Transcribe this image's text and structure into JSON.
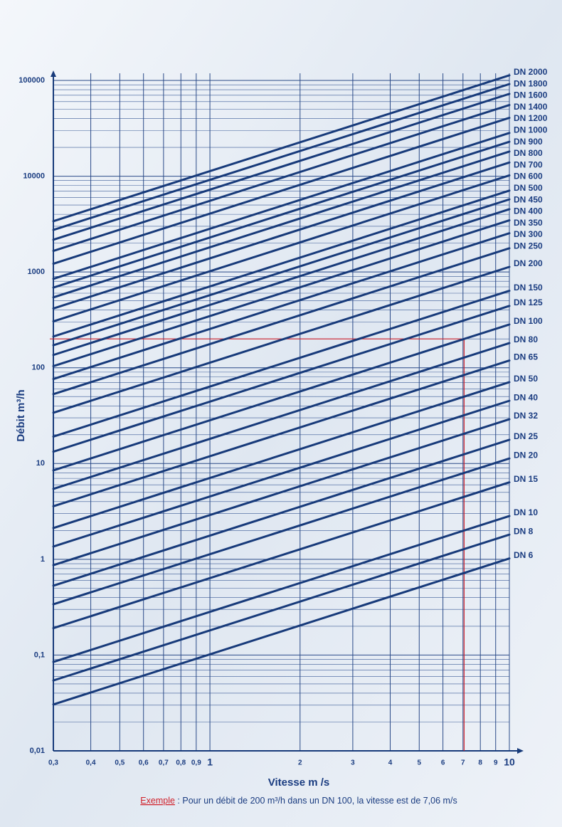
{
  "chart_data": {
    "type": "line",
    "xlabel": "Vitesse m /s",
    "ylabel": "Débit m³/h",
    "x": [
      0.3,
      10
    ],
    "series": [
      {
        "name": "DN 2000",
        "values": [
          3390,
          113000
        ]
      },
      {
        "name": "DN 1800",
        "values": [
          2750,
          91600
        ]
      },
      {
        "name": "DN 1600",
        "values": [
          2170,
          72400
        ]
      },
      {
        "name": "DN 1400",
        "values": [
          1660,
          55400
        ]
      },
      {
        "name": "DN 1200",
        "values": [
          1220,
          40700
        ]
      },
      {
        "name": "DN 1000",
        "values": [
          848,
          28300
        ]
      },
      {
        "name": "DN 900",
        "values": [
          687,
          22900
        ]
      },
      {
        "name": "DN 800",
        "values": [
          543,
          18100
        ]
      },
      {
        "name": "DN 700",
        "values": [
          416,
          13900
        ]
      },
      {
        "name": "DN 600",
        "values": [
          305,
          10200
        ]
      },
      {
        "name": "DN 500",
        "values": [
          212,
          7070
        ]
      },
      {
        "name": "DN 450",
        "values": [
          172,
          5730
        ]
      },
      {
        "name": "DN 400",
        "values": [
          136,
          4520
        ]
      },
      {
        "name": "DN 350",
        "values": [
          104,
          3460
        ]
      },
      {
        "name": "DN 300",
        "values": [
          76.3,
          2540
        ]
      },
      {
        "name": "DN 250",
        "values": [
          53,
          1770
        ]
      },
      {
        "name": "DN 200",
        "values": [
          33.9,
          1130
        ]
      },
      {
        "name": "DN 150",
        "values": [
          19.1,
          636
        ]
      },
      {
        "name": "DN 125",
        "values": [
          13.3,
          442
        ]
      },
      {
        "name": "DN 100",
        "values": [
          8.48,
          283
        ]
      },
      {
        "name": "DN 80",
        "values": [
          5.43,
          181
        ]
      },
      {
        "name": "DN 65",
        "values": [
          3.58,
          119
        ]
      },
      {
        "name": "DN 50",
        "values": [
          2.12,
          70.7
        ]
      },
      {
        "name": "DN 40",
        "values": [
          1.36,
          45.2
        ]
      },
      {
        "name": "DN 32",
        "values": [
          0.869,
          29
        ]
      },
      {
        "name": "DN 25",
        "values": [
          0.53,
          17.7
        ]
      },
      {
        "name": "DN 20",
        "values": [
          0.339,
          11.3
        ]
      },
      {
        "name": "DN 15",
        "values": [
          0.191,
          6.36
        ]
      },
      {
        "name": "DN 10",
        "values": [
          0.0848,
          2.83
        ]
      },
      {
        "name": "DN 8",
        "values": [
          0.0543,
          1.81
        ]
      },
      {
        "name": "DN 6",
        "values": [
          0.0305,
          1.02
        ]
      }
    ],
    "line_color": "#173a7a",
    "xlim": [
      0.3,
      10
    ],
    "ylim": [
      0.01,
      100000
    ],
    "xlog": true,
    "ylog": true,
    "grid": true,
    "minor_grid": true,
    "xticks": [
      {
        "value": 0.3,
        "label": "0,3"
      },
      {
        "value": 0.4,
        "label": "0,4"
      },
      {
        "value": 0.5,
        "label": "0,5"
      },
      {
        "value": 0.6,
        "label": "0,6"
      },
      {
        "value": 0.7,
        "label": "0,7"
      },
      {
        "value": 0.8,
        "label": "0,8"
      },
      {
        "value": 0.9,
        "label": "0,9"
      },
      1,
      2,
      3,
      4,
      5,
      6,
      7,
      8,
      9,
      10
    ],
    "yticks": [
      {
        "value": 0.01,
        "label": "0,01"
      },
      {
        "value": 0.1,
        "label": "0,1"
      },
      1,
      10,
      100,
      1000,
      10000,
      100000
    ],
    "example": {
      "x": 7.06,
      "y": 200,
      "color": "#d0202a",
      "label": "Exemple",
      "text": " : Pour un débit de 200 m³/h dans un DN 100, la vitesse est de 7,06 m/s"
    }
  }
}
